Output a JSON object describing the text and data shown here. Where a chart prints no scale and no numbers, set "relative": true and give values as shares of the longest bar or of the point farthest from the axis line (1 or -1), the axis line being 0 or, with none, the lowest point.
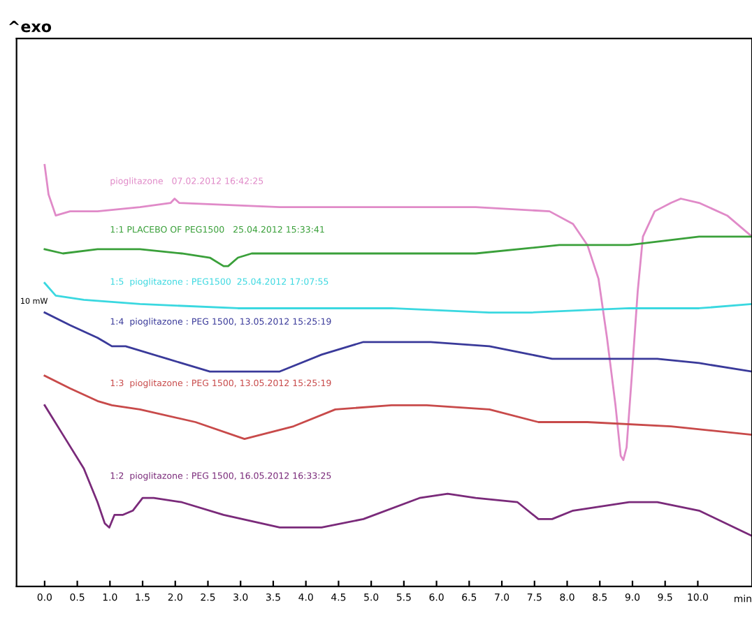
{
  "chart_data": {
    "type": "line",
    "relative": true,
    "xlabel": "min",
    "annotations": [
      "^exo",
      "10 mW"
    ],
    "xlim": [
      -0.43,
      10.83
    ],
    "xticks": [
      {
        "value": 0,
        "label": "0.0"
      },
      {
        "value": 0.5,
        "label": "0.5"
      },
      {
        "value": 1,
        "label": "1.0"
      },
      {
        "value": 1.5,
        "label": "1.5"
      },
      {
        "value": 2,
        "label": "2.0"
      },
      {
        "value": 2.5,
        "label": "2.5"
      },
      {
        "value": 3,
        "label": "3.0"
      },
      {
        "value": 3.5,
        "label": "3.5"
      },
      {
        "value": 4,
        "label": "4.0"
      },
      {
        "value": 4.5,
        "label": "4.5"
      },
      {
        "value": 5,
        "label": "5.0"
      },
      {
        "value": 5.5,
        "label": "5.5"
      },
      {
        "value": 6,
        "label": "6.0"
      },
      {
        "value": 6.5,
        "label": "6.5"
      },
      {
        "value": 7,
        "label": "7.0"
      },
      {
        "value": 7.5,
        "label": "7.5"
      },
      {
        "value": 8,
        "label": "8.0"
      },
      {
        "value": 8.5,
        "label": "8.5"
      },
      {
        "value": 9,
        "label": "9.0"
      },
      {
        "value": 9.5,
        "label": "9.5"
      },
      {
        "value": 10,
        "label": "10.0"
      }
    ],
    "grid": false,
    "legend": false,
    "tick_labels": "x",
    "line_style": "solid",
    "marker": "none",
    "series": [
      {
        "name": "pioglitazone   07.02.2012 16:42:25",
        "color": "#e08ac8",
        "x": [
          0,
          0.06,
          0.17,
          0.39,
          0.81,
          1.46,
          1.93,
          1.99,
          2.06,
          3.6,
          5.31,
          6.6,
          7.73,
          8.09,
          8.31,
          8.48,
          8.61,
          8.74,
          8.82,
          8.86,
          8.91,
          8.99,
          9.08,
          9.16,
          9.34,
          9.59,
          9.74,
          10.02,
          10.45,
          10.83
        ],
        "values": [
          1,
          0.93,
          0.88,
          0.89,
          0.89,
          0.9,
          0.91,
          0.92,
          0.91,
          0.9,
          0.9,
          0.9,
          0.89,
          0.86,
          0.81,
          0.73,
          0.59,
          0.43,
          0.31,
          0.3,
          0.33,
          0.5,
          0.7,
          0.83,
          0.89,
          0.91,
          0.92,
          0.91,
          0.88,
          0.83
        ]
      },
      {
        "name": "1:1 PLACEBO OF PEG1500   25.04.2012 15:33:41",
        "color": "#3aa03a",
        "x": [
          0,
          0.28,
          0.81,
          1.46,
          2.1,
          2.53,
          2.74,
          2.81,
          2.96,
          3.17,
          4.67,
          6.6,
          7.88,
          8.95,
          10.02,
          10.83
        ],
        "values": [
          0.8,
          0.79,
          0.8,
          0.8,
          0.79,
          0.78,
          0.76,
          0.76,
          0.78,
          0.79,
          0.79,
          0.79,
          0.81,
          0.81,
          0.83,
          0.83
        ]
      },
      {
        "name": "1:5  pioglitazone : PEG1500  25.04.2012 17:07:55",
        "color": "#3ad8e0",
        "x": [
          0,
          0.17,
          0.6,
          1.46,
          2.96,
          3.6,
          5.31,
          6.81,
          7.45,
          8.95,
          10.02,
          10.83
        ],
        "values": [
          0.72,
          0.69,
          0.68,
          0.67,
          0.66,
          0.66,
          0.66,
          0.65,
          0.65,
          0.66,
          0.66,
          0.67
        ]
      },
      {
        "name": "1:4  pioglitazone : PEG 1500, 13.05.2012 15:25:19",
        "color": "#3a3a9a",
        "x": [
          0,
          0.39,
          0.81,
          0.92,
          1.03,
          1.24,
          1.88,
          2.53,
          3.06,
          3.6,
          4.24,
          4.88,
          5.74,
          5.85,
          5.91,
          6.81,
          7.45,
          7.77,
          8.31,
          9.38,
          10.02,
          10.83
        ],
        "values": [
          0.65,
          0.62,
          0.59,
          0.58,
          0.57,
          0.57,
          0.54,
          0.51,
          0.51,
          0.51,
          0.55,
          0.58,
          0.58,
          0.58,
          0.58,
          0.57,
          0.55,
          0.54,
          0.54,
          0.54,
          0.53,
          0.51
        ]
      },
      {
        "name": "1:3  pioglitazone : PEG 1500, 13.05.2012 15:25:19",
        "color": "#c84a4a",
        "x": [
          0,
          0.39,
          0.81,
          1.03,
          1.46,
          2.31,
          3.06,
          3.81,
          4.45,
          5.31,
          5.85,
          6.81,
          7.56,
          8.31,
          9.59,
          10.83
        ],
        "values": [
          0.5,
          0.47,
          0.44,
          0.43,
          0.42,
          0.39,
          0.35,
          0.38,
          0.42,
          0.43,
          0.43,
          0.42,
          0.39,
          0.39,
          0.38,
          0.36
        ]
      },
      {
        "name": "1:2  pioglitazone : PEG 1500, 16.05.2012 16:33:25",
        "color": "#7a2a7a",
        "x": [
          0,
          0.28,
          0.6,
          0.81,
          0.92,
          0.99,
          1.07,
          1.2,
          1.35,
          1.5,
          1.67,
          2.1,
          2.74,
          3.6,
          4.24,
          4.88,
          5.74,
          6.17,
          6.6,
          7.24,
          7.56,
          7.77,
          8.09,
          8.95,
          9.38,
          10.02,
          10.83
        ],
        "values": [
          0.43,
          0.36,
          0.28,
          0.2,
          0.15,
          0.14,
          0.17,
          0.17,
          0.18,
          0.21,
          0.21,
          0.2,
          0.17,
          0.14,
          0.14,
          0.16,
          0.21,
          0.22,
          0.21,
          0.2,
          0.16,
          0.16,
          0.18,
          0.2,
          0.2,
          0.18,
          0.12
        ]
      }
    ]
  }
}
